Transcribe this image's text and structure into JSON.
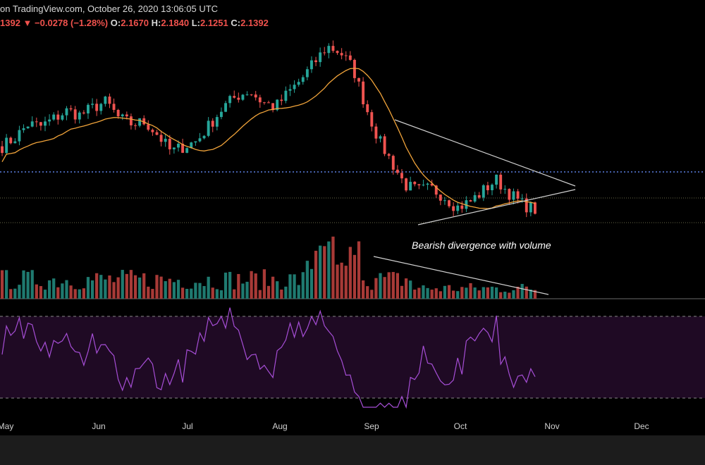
{
  "header": {
    "line1": "on TradingView.com, October 26, 2020 13:06:05 UTC",
    "last": "1392",
    "arrow": "▼",
    "change": "−0.0278 (−1.28%)",
    "o_label": "O:",
    "o_value": "2.1670",
    "h_label": "H:",
    "h_value": "2.1840",
    "l_label": "L:",
    "l_value": "2.1251",
    "c_label": "C:",
    "c_value": "2.1392"
  },
  "annotation": "Bearish divergence with volume",
  "colors": {
    "up": "#26a69a",
    "down": "#ef5350",
    "ma": "#f0a33a",
    "rsi": "#a64ed6",
    "rsi_band": "#1f0a24",
    "hline": "#5a7de0",
    "trendline": "#d0d0d0"
  },
  "chart_data": {
    "type": "candlestick",
    "x_ticks": [
      "May",
      "Jun",
      "Jul",
      "Aug",
      "Sep",
      "Oct",
      "Nov",
      "Dec"
    ],
    "price_series_trend": [
      2.7,
      2.78,
      2.9,
      2.88,
      2.95,
      3.02,
      2.98,
      3.05,
      3.1,
      2.95,
      2.9,
      2.92,
      2.8,
      2.65,
      2.7,
      2.75,
      2.9,
      3.05,
      3.15,
      3.2,
      3.1,
      3.05,
      3.18,
      3.3,
      3.45,
      3.6,
      3.55,
      3.4,
      3.05,
      2.75,
      2.55,
      2.35,
      2.3,
      2.32,
      2.25,
      2.15,
      2.2,
      2.3,
      2.4,
      2.28,
      2.18,
      2.13
    ],
    "panels": [
      "price",
      "volume",
      "rsi"
    ],
    "legend": "none"
  }
}
